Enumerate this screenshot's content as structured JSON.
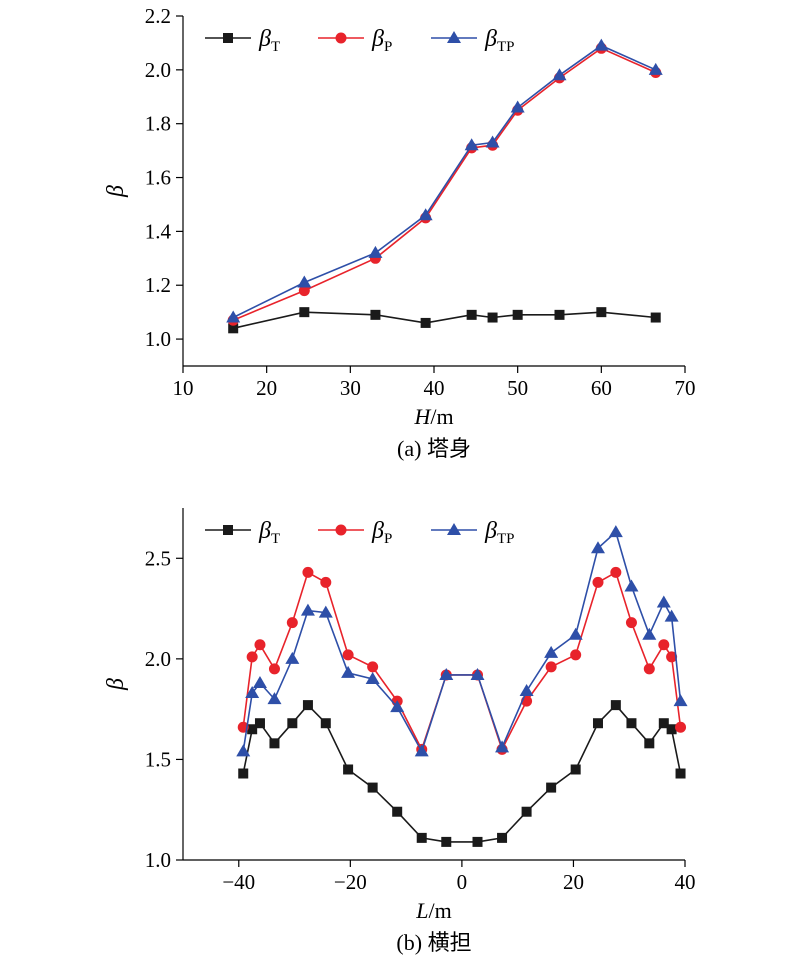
{
  "chart_data": [
    {
      "type": "line",
      "caption": "(a) 塔身",
      "xlabel": "H/m",
      "ylabel": "β",
      "xlim": [
        10,
        70
      ],
      "ylim": [
        0.9,
        2.2
      ],
      "xticks": [
        10,
        20,
        30,
        40,
        50,
        60,
        70
      ],
      "yticks": [
        1.0,
        1.2,
        1.4,
        1.6,
        1.8,
        2.0,
        2.2
      ],
      "legend_position": "top-left",
      "x": [
        16,
        24.5,
        33,
        39,
        44.5,
        47,
        50,
        55,
        60,
        66.5
      ],
      "series": [
        {
          "name": "β",
          "sub": "T",
          "color": "#1a1a1a",
          "marker": "square",
          "values": [
            1.04,
            1.1,
            1.09,
            1.06,
            1.09,
            1.08,
            1.09,
            1.09,
            1.1,
            1.08
          ]
        },
        {
          "name": "β",
          "sub": "P",
          "color": "#e8232b",
          "marker": "circle",
          "values": [
            1.07,
            1.18,
            1.3,
            1.45,
            1.71,
            1.72,
            1.85,
            1.97,
            2.08,
            1.99
          ]
        },
        {
          "name": "β",
          "sub": "TP",
          "color": "#2e4fa8",
          "marker": "triangle",
          "values": [
            1.08,
            1.21,
            1.32,
            1.46,
            1.72,
            1.73,
            1.86,
            1.98,
            2.09,
            2.0
          ]
        }
      ]
    },
    {
      "type": "line",
      "caption": "(b) 横担",
      "xlabel": "L/m",
      "ylabel": "β",
      "xlim": [
        -50,
        40
      ],
      "ylim": [
        1.0,
        2.75
      ],
      "xticks": [
        -40,
        -20,
        0,
        20,
        40
      ],
      "yticks": [
        1.0,
        1.5,
        2.0,
        2.5
      ],
      "legend_position": "top-left",
      "x": [
        -39.2,
        -37.6,
        -36.2,
        -33.6,
        -30.4,
        -27.6,
        -24.4,
        -20.4,
        -16,
        -11.6,
        -7.2,
        -2.8,
        2.8,
        7.2,
        11.6,
        16,
        20.4,
        24.4,
        27.6,
        30.4,
        33.6,
        36.2,
        37.6,
        39.2
      ],
      "series": [
        {
          "name": "β",
          "sub": "T",
          "color": "#1a1a1a",
          "marker": "square",
          "values": [
            1.43,
            1.65,
            1.68,
            1.58,
            1.68,
            1.77,
            1.68,
            1.45,
            1.36,
            1.24,
            1.11,
            1.09,
            1.09,
            1.11,
            1.24,
            1.36,
            1.45,
            1.68,
            1.77,
            1.68,
            1.58,
            1.68,
            1.65,
            1.43
          ]
        },
        {
          "name": "β",
          "sub": "P",
          "color": "#e8232b",
          "marker": "circle",
          "values": [
            1.66,
            2.01,
            2.07,
            1.95,
            2.18,
            2.43,
            2.38,
            2.02,
            1.96,
            1.79,
            1.55,
            1.92,
            1.92,
            1.55,
            1.79,
            1.96,
            2.02,
            2.38,
            2.43,
            2.18,
            1.95,
            2.07,
            2.01,
            1.66
          ]
        },
        {
          "name": "β",
          "sub": "TP",
          "color": "#2e4fa8",
          "marker": "triangle",
          "values": [
            1.54,
            1.83,
            1.88,
            1.8,
            2.0,
            2.24,
            2.23,
            1.93,
            1.9,
            1.76,
            1.54,
            1.92,
            1.92,
            1.56,
            1.84,
            2.03,
            2.12,
            2.55,
            2.63,
            2.36,
            2.12,
            2.28,
            2.21,
            1.79
          ]
        }
      ]
    }
  ]
}
